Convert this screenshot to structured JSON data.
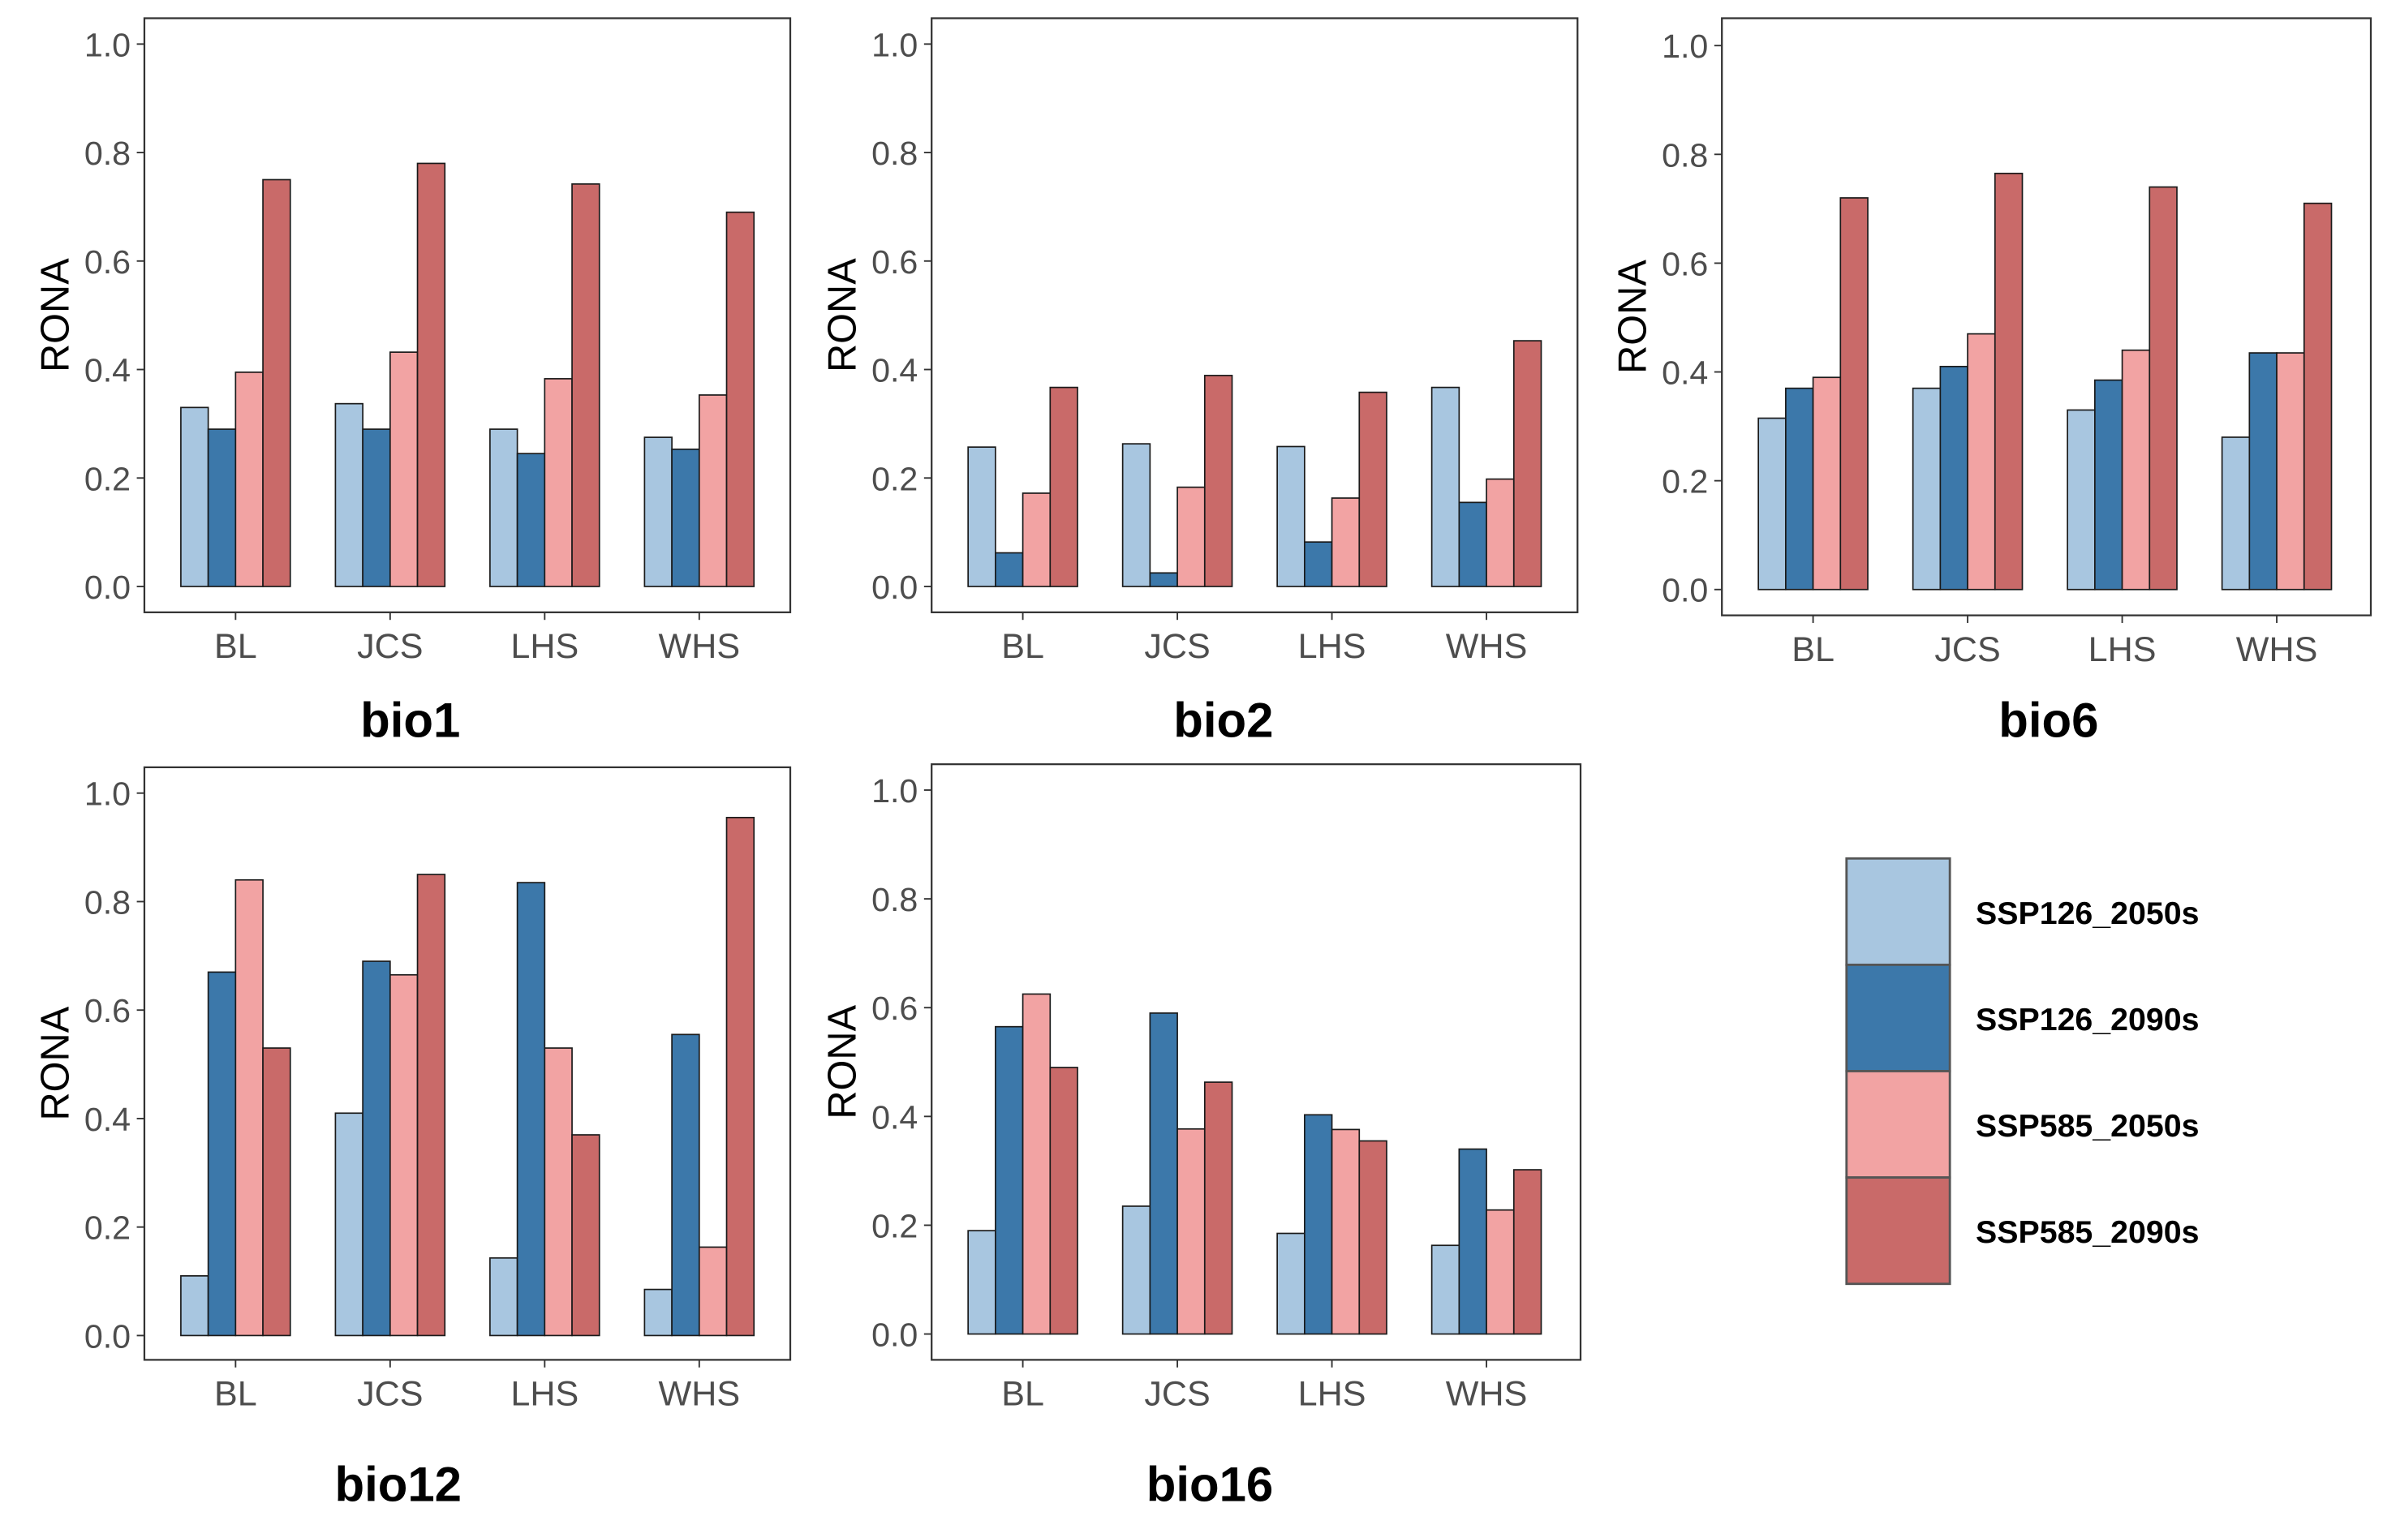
{
  "chart_data": [
    {
      "type": "bar",
      "title": "bio1",
      "ylabel": "RONA",
      "xlabel": "",
      "ylim": [
        0,
        1
      ],
      "yticks": [
        "0.0",
        "0.2",
        "0.4",
        "0.6",
        "0.8",
        "1.0"
      ],
      "categories": [
        "BL",
        "JCS",
        "LHS",
        "WHS"
      ],
      "series": [
        {
          "name": "SSP126_2050s",
          "values": [
            0.33,
            0.337,
            0.29,
            0.275
          ]
        },
        {
          "name": "SSP126_2090s",
          "values": [
            0.29,
            0.29,
            0.245,
            0.253
          ]
        },
        {
          "name": "SSP585_2050s",
          "values": [
            0.395,
            0.432,
            0.383,
            0.353
          ]
        },
        {
          "name": "SSP585_2090s",
          "values": [
            0.75,
            0.78,
            0.742,
            0.69
          ]
        }
      ]
    },
    {
      "type": "bar",
      "title": "bio2",
      "ylabel": "RONA",
      "xlabel": "",
      "ylim": [
        0,
        1
      ],
      "yticks": [
        "0.0",
        "0.2",
        "0.4",
        "0.6",
        "0.8",
        "1.0"
      ],
      "categories": [
        "BL",
        "JCS",
        "LHS",
        "WHS"
      ],
      "series": [
        {
          "name": "SSP126_2050s",
          "values": [
            0.257,
            0.263,
            0.258,
            0.367
          ]
        },
        {
          "name": "SSP126_2090s",
          "values": [
            0.062,
            0.025,
            0.082,
            0.155
          ]
        },
        {
          "name": "SSP585_2050s",
          "values": [
            0.172,
            0.183,
            0.163,
            0.198
          ]
        },
        {
          "name": "SSP585_2090s",
          "values": [
            0.367,
            0.389,
            0.358,
            0.453
          ]
        }
      ]
    },
    {
      "type": "bar",
      "title": "bio6",
      "ylabel": "RONA",
      "xlabel": "",
      "ylim": [
        0,
        1
      ],
      "yticks": [
        "0.0",
        "0.2",
        "0.4",
        "0.6",
        "0.8",
        "1.0"
      ],
      "categories": [
        "BL",
        "JCS",
        "LHS",
        "WHS"
      ],
      "series": [
        {
          "name": "SSP126_2050s",
          "values": [
            0.315,
            0.37,
            0.33,
            0.28
          ]
        },
        {
          "name": "SSP126_2090s",
          "values": [
            0.37,
            0.41,
            0.385,
            0.435
          ]
        },
        {
          "name": "SSP585_2050s",
          "values": [
            0.39,
            0.47,
            0.44,
            0.435
          ]
        },
        {
          "name": "SSP585_2090s",
          "values": [
            0.72,
            0.765,
            0.74,
            0.71
          ]
        }
      ]
    },
    {
      "type": "bar",
      "title": "bio12",
      "ylabel": "RONA",
      "xlabel": "",
      "ylim": [
        0,
        1
      ],
      "yticks": [
        "0.0",
        "0.2",
        "0.4",
        "0.6",
        "0.8",
        "1.0"
      ],
      "categories": [
        "BL",
        "JCS",
        "LHS",
        "WHS"
      ],
      "series": [
        {
          "name": "SSP126_2050s",
          "values": [
            0.11,
            0.41,
            0.143,
            0.085
          ]
        },
        {
          "name": "SSP126_2090s",
          "values": [
            0.67,
            0.69,
            0.835,
            0.555
          ]
        },
        {
          "name": "SSP585_2050s",
          "values": [
            0.84,
            0.665,
            0.53,
            0.163
          ]
        },
        {
          "name": "SSP585_2090s",
          "values": [
            0.53,
            0.85,
            0.37,
            0.955
          ]
        }
      ]
    },
    {
      "type": "bar",
      "title": "bio16",
      "ylabel": "RONA",
      "xlabel": "",
      "ylim": [
        0,
        1
      ],
      "yticks": [
        "0.0",
        "0.2",
        "0.4",
        "0.6",
        "0.8",
        "1.0"
      ],
      "categories": [
        "BL",
        "JCS",
        "LHS",
        "WHS"
      ],
      "series": [
        {
          "name": "SSP126_2050s",
          "values": [
            0.19,
            0.235,
            0.185,
            0.163
          ]
        },
        {
          "name": "SSP126_2090s",
          "values": [
            0.565,
            0.59,
            0.403,
            0.34
          ]
        },
        {
          "name": "SSP585_2050s",
          "values": [
            0.625,
            0.377,
            0.376,
            0.228
          ]
        },
        {
          "name": "SSP585_2090s",
          "values": [
            0.49,
            0.463,
            0.355,
            0.302
          ]
        }
      ]
    }
  ],
  "legend": {
    "placement": "bottom-right",
    "entries": [
      "SSP126_2050s",
      "SSP126_2090s",
      "SSP585_2050s",
      "SSP585_2090s"
    ]
  },
  "colors": [
    "#a8c6e0",
    "#3c78aa",
    "#f2a3a3",
    "#c96a69"
  ]
}
